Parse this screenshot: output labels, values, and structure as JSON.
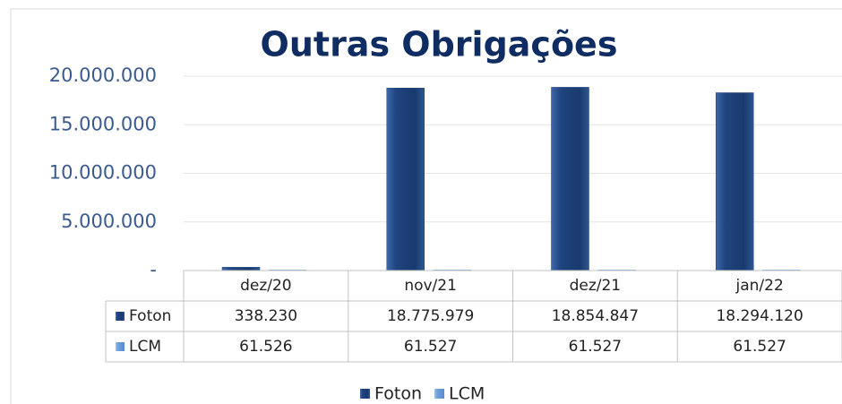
{
  "chart_data": {
    "type": "bar",
    "title": "Outras Obrigações",
    "categories": [
      "dez/20",
      "nov/21",
      "dez/21",
      "jan/22"
    ],
    "series": [
      {
        "name": "Foton",
        "color": "#1f447f",
        "values": [
          338230,
          18775979,
          18854847,
          18294120
        ],
        "value_labels": [
          "338.230",
          "18.775.979",
          "18.854.847",
          "18.294.120"
        ]
      },
      {
        "name": "LCM",
        "color": "#6f9fdc",
        "values": [
          61526,
          61527,
          61527,
          61527
        ],
        "value_labels": [
          "61.526",
          "61.527",
          "61.527",
          "61.527"
        ]
      }
    ],
    "ylim": [
      0,
      20000000
    ],
    "yticks": [
      {
        "value": 0,
        "label": "-"
      },
      {
        "value": 5000000,
        "label": "5.000.000"
      },
      {
        "value": 10000000,
        "label": "10.000.000"
      },
      {
        "value": 15000000,
        "label": "15.000.000"
      },
      {
        "value": 20000000,
        "label": "20.000.000"
      }
    ],
    "grid": true,
    "legend": "bottom"
  }
}
